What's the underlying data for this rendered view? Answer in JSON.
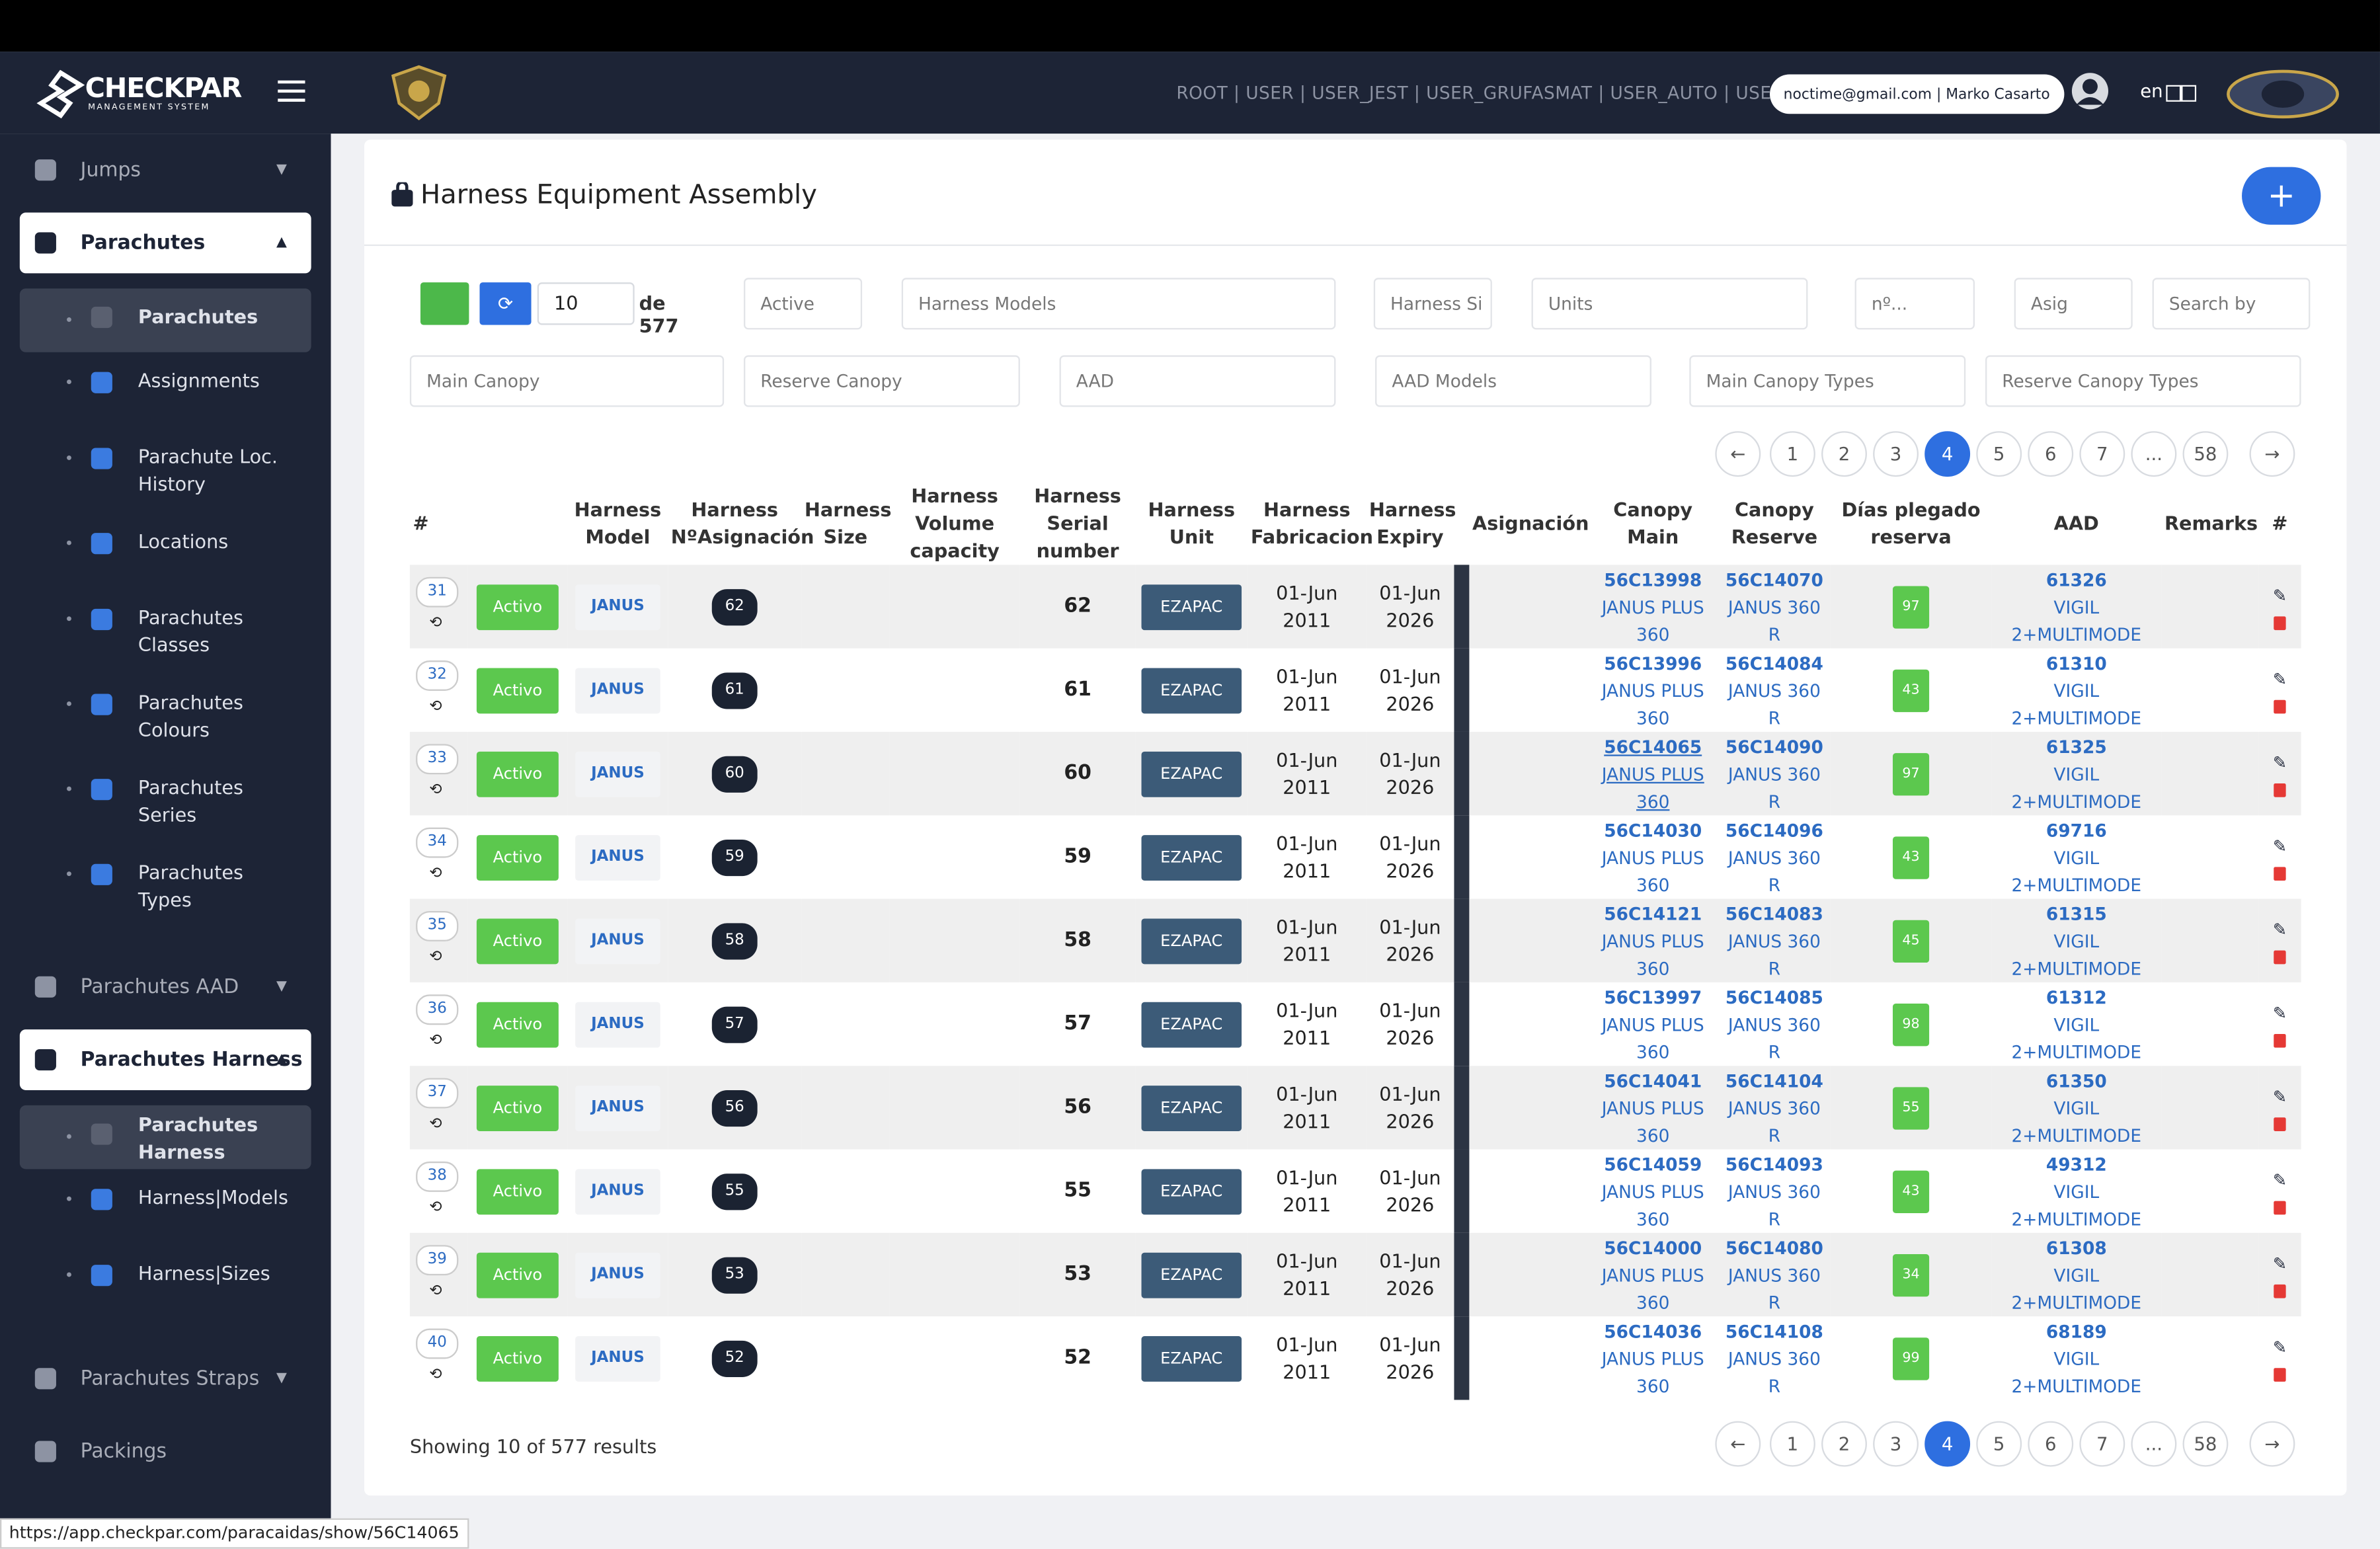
{
  "header": {
    "logo": "CHECKPAR",
    "logo_sub": "MANAGEMENT SYSTEM",
    "roles": "ROOT | USER | USER_JEST | USER_GRUFASMAT | USER_AUTO | USER",
    "user": "noctime@gmail.com | Marko Casarto",
    "lang": "en"
  },
  "sidebar": [
    {
      "label": "Jumps",
      "state": "collapsed"
    },
    {
      "label": "Parachutes",
      "state": "open",
      "children": [
        "Parachutes",
        "Assignments",
        "Parachute Loc. History",
        "Locations",
        "Parachutes Classes",
        "Parachutes Colours",
        "Parachutes Series",
        "Parachutes Types"
      ]
    },
    {
      "label": "Parachutes AAD",
      "state": "collapsed"
    },
    {
      "label": "Parachutes Harness",
      "state": "open",
      "children": [
        "Parachutes Harness",
        "Harness|Models",
        "Harness|Sizes"
      ]
    },
    {
      "label": "Parachutes Straps",
      "state": "collapsed"
    },
    {
      "label": "Packings",
      "state": "plain"
    }
  ],
  "page": {
    "title": "Harness Equipment Assembly",
    "per_page": "10",
    "total": "de 577",
    "filters_row1": [
      "Active",
      "Harness Models",
      "Harness Si",
      "Units",
      "nº...",
      "Asig",
      "Search by"
    ],
    "filters_row2": [
      "Main Canopy",
      "Reserve Canopy",
      "AAD",
      "AAD Models",
      "Main Canopy Types",
      "Reserve Canopy Types"
    ],
    "pagination": [
      "1",
      "2",
      "3",
      "4",
      "5",
      "6",
      "7",
      "...",
      "58"
    ],
    "current_page": "4",
    "showing": "Showing 10 of 577 results"
  },
  "table": {
    "headers": {
      "num": "#",
      "model": "Harness Model",
      "asig": "Harness NºAsignación",
      "size": "Harness Size",
      "volume": "Harness Volume capacity",
      "serial": "Harness Serial number",
      "unit": "Harness Unit",
      "fab": "Harness Fabricacion",
      "exp": "Harness Expiry",
      "assignment": "Asignación",
      "main": "Canopy Main",
      "reserve": "Canopy Reserve",
      "days": "Días plegado reserva",
      "aad": "AAD",
      "remarks": "Remarks",
      "actions": "#"
    },
    "rows": [
      {
        "num": "31",
        "status": "Activo",
        "model": "JANUS",
        "asig": "62",
        "serial": "62",
        "unit": "EZAPAC",
        "fab": "01-Jun 2011",
        "exp": "01-Jun 2026",
        "main_code": "56C13998",
        "main_model": "JANUS PLUS 360",
        "reserve_code": "56C14070",
        "reserve_model": "JANUS 360 R",
        "days": "97",
        "aad_code": "61326",
        "aad_model": "VIGIL 2+MULTIMODE"
      },
      {
        "num": "32",
        "status": "Activo",
        "model": "JANUS",
        "asig": "61",
        "serial": "61",
        "unit": "EZAPAC",
        "fab": "01-Jun 2011",
        "exp": "01-Jun 2026",
        "main_code": "56C13996",
        "main_model": "JANUS PLUS 360",
        "reserve_code": "56C14084",
        "reserve_model": "JANUS 360 R",
        "days": "43",
        "aad_code": "61310",
        "aad_model": "VIGIL 2+MULTIMODE"
      },
      {
        "num": "33",
        "status": "Activo",
        "model": "JANUS",
        "asig": "60",
        "serial": "60",
        "unit": "EZAPAC",
        "fab": "01-Jun 2011",
        "exp": "01-Jun 2026",
        "main_code": "56C14065",
        "main_model": "JANUS PLUS 360",
        "reserve_code": "56C14090",
        "reserve_model": "JANUS 360 R",
        "days": "97",
        "aad_code": "61325",
        "aad_model": "VIGIL 2+MULTIMODE"
      },
      {
        "num": "34",
        "status": "Activo",
        "model": "JANUS",
        "asig": "59",
        "serial": "59",
        "unit": "EZAPAC",
        "fab": "01-Jun 2011",
        "exp": "01-Jun 2026",
        "main_code": "56C14030",
        "main_model": "JANUS PLUS 360",
        "reserve_code": "56C14096",
        "reserve_model": "JANUS 360 R",
        "days": "43",
        "aad_code": "69716",
        "aad_model": "VIGIL 2+MULTIMODE"
      },
      {
        "num": "35",
        "status": "Activo",
        "model": "JANUS",
        "asig": "58",
        "serial": "58",
        "unit": "EZAPAC",
        "fab": "01-Jun 2011",
        "exp": "01-Jun 2026",
        "main_code": "56C14121",
        "main_model": "JANUS PLUS 360",
        "reserve_code": "56C14083",
        "reserve_model": "JANUS 360 R",
        "days": "45",
        "aad_code": "61315",
        "aad_model": "VIGIL 2+MULTIMODE"
      },
      {
        "num": "36",
        "status": "Activo",
        "model": "JANUS",
        "asig": "57",
        "serial": "57",
        "unit": "EZAPAC",
        "fab": "01-Jun 2011",
        "exp": "01-Jun 2026",
        "main_code": "56C13997",
        "main_model": "JANUS PLUS 360",
        "reserve_code": "56C14085",
        "reserve_model": "JANUS 360 R",
        "days": "98",
        "aad_code": "61312",
        "aad_model": "VIGIL 2+MULTIMODE"
      },
      {
        "num": "37",
        "status": "Activo",
        "model": "JANUS",
        "asig": "56",
        "serial": "56",
        "unit": "EZAPAC",
        "fab": "01-Jun 2011",
        "exp": "01-Jun 2026",
        "main_code": "56C14041",
        "main_model": "JANUS PLUS 360",
        "reserve_code": "56C14104",
        "reserve_model": "JANUS 360 R",
        "days": "55",
        "aad_code": "61350",
        "aad_model": "VIGIL 2+MULTIMODE"
      },
      {
        "num": "38",
        "status": "Activo",
        "model": "JANUS",
        "asig": "55",
        "serial": "55",
        "unit": "EZAPAC",
        "fab": "01-Jun 2011",
        "exp": "01-Jun 2026",
        "main_code": "56C14059",
        "main_model": "JANUS PLUS 360",
        "reserve_code": "56C14093",
        "reserve_model": "JANUS 360 R",
        "days": "43",
        "aad_code": "49312",
        "aad_model": "VIGIL 2+MULTIMODE"
      },
      {
        "num": "39",
        "status": "Activo",
        "model": "JANUS",
        "asig": "53",
        "serial": "53",
        "unit": "EZAPAC",
        "fab": "01-Jun 2011",
        "exp": "01-Jun 2026",
        "main_code": "56C14000",
        "main_model": "JANUS PLUS 360",
        "reserve_code": "56C14080",
        "reserve_model": "JANUS 360 R",
        "days": "34",
        "aad_code": "61308",
        "aad_model": "VIGIL 2+MULTIMODE"
      },
      {
        "num": "40",
        "status": "Activo",
        "model": "JANUS",
        "asig": "52",
        "serial": "52",
        "unit": "EZAPAC",
        "fab": "01-Jun 2011",
        "exp": "01-Jun 2026",
        "main_code": "56C14036",
        "main_model": "JANUS PLUS 360",
        "reserve_code": "56C14108",
        "reserve_model": "JANUS 360 R",
        "days": "99",
        "aad_code": "68189",
        "aad_model": "VIGIL 2+MULTIMODE"
      }
    ]
  },
  "status_bar": "https://app.checkpar.com/paracaidas/show/56C14065"
}
